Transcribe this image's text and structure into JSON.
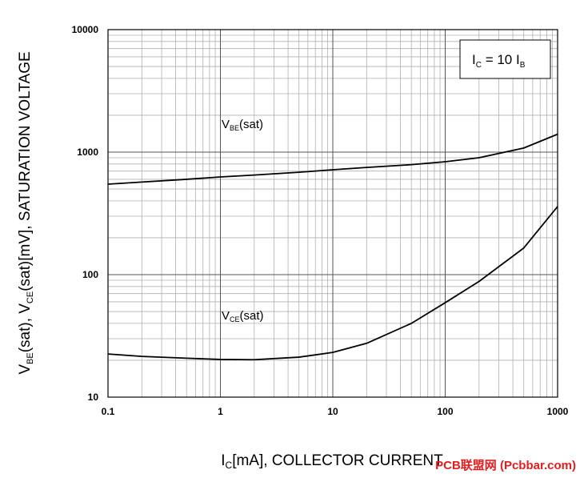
{
  "chart_data": {
    "type": "line",
    "x_label": [
      "I",
      "C",
      "[mA], COLLECTOR CURRENT"
    ],
    "y_label": [
      "V",
      "BE",
      "(sat),  V",
      "CE",
      "(sat)[mV], SATURATION VOLTAGE"
    ],
    "annotation": [
      "I",
      "C",
      " = 10 I",
      "B"
    ],
    "watermark": "PCB联盟网 (Pcbbar.com)",
    "x": [
      0.1,
      0.2,
      0.5,
      1,
      2,
      5,
      10,
      20,
      50,
      100,
      200,
      500,
      1000
    ],
    "series": [
      {
        "name": [
          "V",
          "BE",
          "(sat)"
        ],
        "color": "#000000",
        "values": [
          548,
          570,
          600,
          627,
          650,
          685,
          718,
          750,
          790,
          835,
          900,
          1080,
          1400
        ]
      },
      {
        "name": [
          "V",
          "CE",
          "(sat)"
        ],
        "color": "#000000",
        "values": [
          22.5,
          21.5,
          20.8,
          20.3,
          20.2,
          21.2,
          23.2,
          27.5,
          40,
          59,
          88,
          165,
          360
        ]
      }
    ],
    "xlim": [
      0.1,
      1000
    ],
    "ylim": [
      10,
      10000
    ],
    "xticks": [
      0.1,
      1,
      10,
      100,
      1000
    ],
    "yticks": [
      10,
      100,
      1000,
      10000
    ],
    "xscale": "log",
    "yscale": "log",
    "grid": true,
    "minor_grid": true
  }
}
